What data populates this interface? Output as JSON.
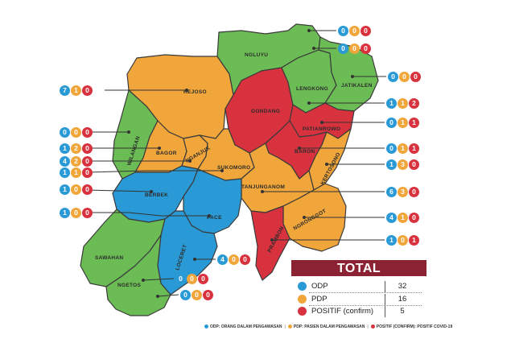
{
  "colors": {
    "odp": "#2a9ad6",
    "pdp": "#f0a63a",
    "positif": "#d9323f",
    "green": "#6cbc55",
    "total_header": "#8b2233"
  },
  "regions": [
    {
      "id": "ngluyu",
      "label": "NGLUYU",
      "status": "green"
    },
    {
      "id": "rejoso",
      "label": "REJOSO",
      "status": "pdp"
    },
    {
      "id": "gondang",
      "label": "GONDANG",
      "status": "positif"
    },
    {
      "id": "lengkong",
      "label": "LENGKONG",
      "status": "green"
    },
    {
      "id": "jatikalen",
      "label": "JATIKALEN",
      "status": "green"
    },
    {
      "id": "patianrowo",
      "label": "PATIANROWO",
      "status": "positif"
    },
    {
      "id": "wilangan",
      "label": "WILANGAN",
      "status": "green"
    },
    {
      "id": "bagor",
      "label": "BAGOR",
      "status": "pdp"
    },
    {
      "id": "nganjuk",
      "label": "NGANJUK",
      "status": "pdp"
    },
    {
      "id": "sukomoro",
      "label": "SUKOMORO",
      "status": "pdp"
    },
    {
      "id": "baron",
      "label": "BARON",
      "status": "positif"
    },
    {
      "id": "kertosono",
      "label": "KERTOSONO",
      "status": "pdp"
    },
    {
      "id": "berbek",
      "label": "BERBEK",
      "status": "odp"
    },
    {
      "id": "tanjunganom",
      "label": "TANJUNGANOM",
      "status": "pdp"
    },
    {
      "id": "pace",
      "label": "PACE",
      "status": "odp"
    },
    {
      "id": "ngronggot",
      "label": "NGRONGGOT",
      "status": "pdp"
    },
    {
      "id": "sawahan",
      "label": "SAWAHAN",
      "status": "green"
    },
    {
      "id": "loceret",
      "label": "LOCERET",
      "status": "odp"
    },
    {
      "id": "prambon",
      "label": "PRAMBON",
      "status": "positif"
    },
    {
      "id": "ngetos",
      "label": "NGETOS",
      "status": "green"
    }
  ],
  "counts": [
    {
      "id": "ngluyu-top",
      "odp": "0",
      "pdp": "0",
      "pos": "0"
    },
    {
      "id": "ngluyu",
      "odp": "0",
      "pdp": "0",
      "pos": "0"
    },
    {
      "id": "jatikalen",
      "odp": "0",
      "pdp": "0",
      "pos": "0"
    },
    {
      "id": "rejoso",
      "odp": "7",
      "pdp": "1",
      "pos": "0"
    },
    {
      "id": "lengkong",
      "odp": "1",
      "pdp": "1",
      "pos": "2"
    },
    {
      "id": "wilangan",
      "odp": "0",
      "pdp": "0",
      "pos": "0"
    },
    {
      "id": "patianrowo",
      "odp": "0",
      "pdp": "1",
      "pos": "1"
    },
    {
      "id": "bagor",
      "odp": "1",
      "pdp": "2",
      "pos": "0"
    },
    {
      "id": "baron",
      "odp": "0",
      "pdp": "1",
      "pos": "1"
    },
    {
      "id": "nganjuk",
      "odp": "4",
      "pdp": "2",
      "pos": "0"
    },
    {
      "id": "kertosono",
      "odp": "1",
      "pdp": "3",
      "pos": "0"
    },
    {
      "id": "sukomoro",
      "odp": "1",
      "pdp": "1",
      "pos": "0"
    },
    {
      "id": "berbek",
      "odp": "1",
      "pdp": "0",
      "pos": "0"
    },
    {
      "id": "tanjunganom",
      "odp": "6",
      "pdp": "3",
      "pos": "0"
    },
    {
      "id": "sawahan",
      "odp": "1",
      "pdp": "0",
      "pos": "0"
    },
    {
      "id": "ngronggot",
      "odp": "4",
      "pdp": "1",
      "pos": "0"
    },
    {
      "id": "prambon",
      "odp": "1",
      "pdp": "0",
      "pos": "1"
    },
    {
      "id": "loceret",
      "odp": "4",
      "pdp": "0",
      "pos": "0"
    },
    {
      "id": "ngetos",
      "odp": "0",
      "pdp": "0",
      "pos": "0"
    },
    {
      "id": "pace",
      "odp": "0",
      "pdp": "0",
      "pos": "0"
    }
  ],
  "total": {
    "title": "TOTAL",
    "rows": [
      {
        "label": "ODP",
        "value": "32",
        "color": "#2a9ad6"
      },
      {
        "label": "PDP",
        "value": "16",
        "color": "#f0a63a"
      },
      {
        "label": "POSITIF (confirm)",
        "value": "5",
        "color": "#d9323f"
      }
    ]
  },
  "legend": {
    "odp": "ODP: ORANG DALAM PENGAWASAN",
    "pdp": "PDP: PASIEN DALAM PENGAWASAN",
    "positif": "POSITIF (CONFIRM): POSITIF COVID-19"
  }
}
